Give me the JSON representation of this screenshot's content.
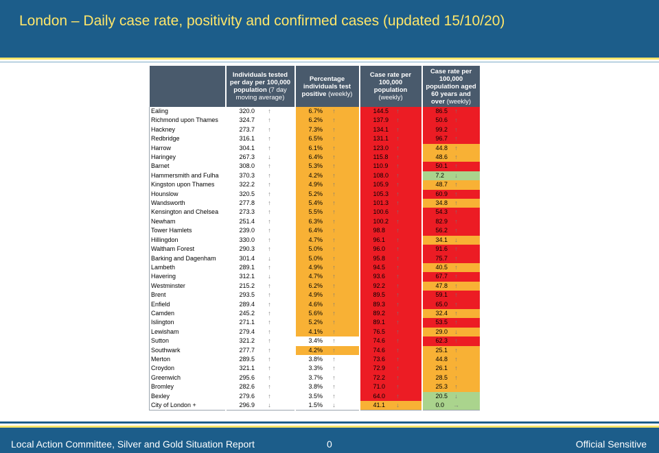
{
  "slide": {
    "title": "London – Daily case rate, positivity and confirmed cases (updated 15/10/20)",
    "footer_left": "Local Action Committee, Silver and Gold Situation Report",
    "footer_page": "0",
    "footer_right": "Official Sensitive"
  },
  "colors": {
    "header_blue": "#1c5d8a",
    "title_yellow": "#ffe66a",
    "red": "#ec1c24",
    "amber": "#f8b135",
    "green": "#aad48d",
    "table_header": "#495a6c"
  },
  "table": {
    "headers": {
      "tested": "Individuals tested per day per 100,000 population",
      "tested_note": "(7 day moving average)",
      "positivity": "Percentage individuals test positive",
      "positivity_note": "(weekly)",
      "case_rate": "Case rate per 100,000 population",
      "case_rate_note": "(weekly)",
      "case_rate_60": "Case rate per 100,000 population aged 60 years and over",
      "case_rate_60_note": "(weekly)"
    },
    "rows": [
      {
        "name": "Ealing",
        "tested": "320.0",
        "t_arr": "up",
        "pos": "6.7%",
        "p_arr": "up",
        "p_col": "amb",
        "rate": "144.5",
        "r_arr": "up",
        "r_col": "red",
        "r60": "86.5",
        "r60_arr": "up",
        "r60_col": "red"
      },
      {
        "name": "Richmond upon Thames",
        "tested": "324.7",
        "t_arr": "up",
        "pos": "6.2%",
        "p_arr": "up",
        "p_col": "amb",
        "rate": "137.9",
        "r_arr": "up",
        "r_col": "red",
        "r60": "50.6",
        "r60_arr": "up",
        "r60_col": "red"
      },
      {
        "name": "Hackney",
        "tested": "273.7",
        "t_arr": "up",
        "pos": "7.3%",
        "p_arr": "up",
        "p_col": "amb",
        "rate": "134.1",
        "r_arr": "up",
        "r_col": "red",
        "r60": "99.2",
        "r60_arr": "up",
        "r60_col": "red"
      },
      {
        "name": "Redbridge",
        "tested": "316.1",
        "t_arr": "up",
        "pos": "6.5%",
        "p_arr": "up",
        "p_col": "amb",
        "rate": "131.1",
        "r_arr": "up",
        "r_col": "red",
        "r60": "96.7",
        "r60_arr": "up",
        "r60_col": "red"
      },
      {
        "name": "Harrow",
        "tested": "304.1",
        "t_arr": "up",
        "pos": "6.1%",
        "p_arr": "up",
        "p_col": "amb",
        "rate": "123.0",
        "r_arr": "up",
        "r_col": "red",
        "r60": "44.8",
        "r60_arr": "up",
        "r60_col": "amb"
      },
      {
        "name": "Haringey",
        "tested": "267.3",
        "t_arr": "down",
        "pos": "6.4%",
        "p_arr": "up",
        "p_col": "amb",
        "rate": "115.8",
        "r_arr": "up",
        "r_col": "red",
        "r60": "48.6",
        "r60_arr": "up",
        "r60_col": "amb"
      },
      {
        "name": "Barnet",
        "tested": "308.0",
        "t_arr": "up",
        "pos": "5.3%",
        "p_arr": "up",
        "p_col": "amb",
        "rate": "110.9",
        "r_arr": "up",
        "r_col": "red",
        "r60": "50.1",
        "r60_arr": "up",
        "r60_col": "red"
      },
      {
        "name": "Hammersmith and Fulha",
        "tested": "370.3",
        "t_arr": "up",
        "pos": "4.2%",
        "p_arr": "up",
        "p_col": "amb",
        "rate": "108.0",
        "r_arr": "up",
        "r_col": "red",
        "r60": "7.2",
        "r60_arr": "down",
        "r60_col": "grn"
      },
      {
        "name": "Kingston upon Thames",
        "tested": "322.2",
        "t_arr": "up",
        "pos": "4.9%",
        "p_arr": "up",
        "p_col": "amb",
        "rate": "105.9",
        "r_arr": "up",
        "r_col": "red",
        "r60": "48.7",
        "r60_arr": "up",
        "r60_col": "amb"
      },
      {
        "name": "Hounslow",
        "tested": "320.5",
        "t_arr": "up",
        "pos": "5.2%",
        "p_arr": "up",
        "p_col": "amb",
        "rate": "105.3",
        "r_arr": "up",
        "r_col": "red",
        "r60": "60.9",
        "r60_arr": "up",
        "r60_col": "red"
      },
      {
        "name": "Wandsworth",
        "tested": "277.8",
        "t_arr": "up",
        "pos": "5.4%",
        "p_arr": "up",
        "p_col": "amb",
        "rate": "101.3",
        "r_arr": "up",
        "r_col": "red",
        "r60": "34.8",
        "r60_arr": "up",
        "r60_col": "amb"
      },
      {
        "name": "Kensington and Chelsea",
        "tested": "273.3",
        "t_arr": "up",
        "pos": "5.5%",
        "p_arr": "up",
        "p_col": "amb",
        "rate": "100.6",
        "r_arr": "up",
        "r_col": "red",
        "r60": "54.3",
        "r60_arr": "up",
        "r60_col": "red"
      },
      {
        "name": "Newham",
        "tested": "251.4",
        "t_arr": "up",
        "pos": "6.3%",
        "p_arr": "up",
        "p_col": "amb",
        "rate": "100.2",
        "r_arr": "up",
        "r_col": "red",
        "r60": "82.9",
        "r60_arr": "up",
        "r60_col": "red"
      },
      {
        "name": "Tower Hamlets",
        "tested": "239.0",
        "t_arr": "up",
        "pos": "6.4%",
        "p_arr": "up",
        "p_col": "amb",
        "rate": "98.8",
        "r_arr": "up",
        "r_col": "red",
        "r60": "56.2",
        "r60_arr": "up",
        "r60_col": "red"
      },
      {
        "name": "Hillingdon",
        "tested": "330.0",
        "t_arr": "up",
        "pos": "4.7%",
        "p_arr": "up",
        "p_col": "amb",
        "rate": "96.1",
        "r_arr": "up",
        "r_col": "red",
        "r60": "34.1",
        "r60_arr": "down",
        "r60_col": "amb"
      },
      {
        "name": "Waltham Forest",
        "tested": "290.3",
        "t_arr": "up",
        "pos": "5.0%",
        "p_arr": "up",
        "p_col": "amb",
        "rate": "96.0",
        "r_arr": "up",
        "r_col": "red",
        "r60": "91.6",
        "r60_arr": "up",
        "r60_col": "red"
      },
      {
        "name": "Barking and Dagenham",
        "tested": "301.4",
        "t_arr": "down",
        "pos": "5.0%",
        "p_arr": "up",
        "p_col": "amb",
        "rate": "95.8",
        "r_arr": "up",
        "r_col": "red",
        "r60": "75.7",
        "r60_arr": "up",
        "r60_col": "red"
      },
      {
        "name": "Lambeth",
        "tested": "289.1",
        "t_arr": "up",
        "pos": "4.9%",
        "p_arr": "up",
        "p_col": "amb",
        "rate": "94.5",
        "r_arr": "up",
        "r_col": "red",
        "r60": "40.5",
        "r60_arr": "up",
        "r60_col": "amb"
      },
      {
        "name": "Havering",
        "tested": "312.1",
        "t_arr": "down",
        "pos": "4.7%",
        "p_arr": "up",
        "p_col": "amb",
        "rate": "93.6",
        "r_arr": "up",
        "r_col": "red",
        "r60": "67.7",
        "r60_arr": "up",
        "r60_col": "red"
      },
      {
        "name": "Westminster",
        "tested": "215.2",
        "t_arr": "up",
        "pos": "6.2%",
        "p_arr": "up",
        "p_col": "amb",
        "rate": "92.2",
        "r_arr": "up",
        "r_col": "red",
        "r60": "47.8",
        "r60_arr": "up",
        "r60_col": "amb"
      },
      {
        "name": "Brent",
        "tested": "293.5",
        "t_arr": "up",
        "pos": "4.9%",
        "p_arr": "up",
        "p_col": "amb",
        "rate": "89.5",
        "r_arr": "up",
        "r_col": "red",
        "r60": "59.1",
        "r60_arr": "up",
        "r60_col": "red"
      },
      {
        "name": "Enfield",
        "tested": "289.4",
        "t_arr": "up",
        "pos": "4.6%",
        "p_arr": "up",
        "p_col": "amb",
        "rate": "89.3",
        "r_arr": "up",
        "r_col": "red",
        "r60": "65.0",
        "r60_arr": "up",
        "r60_col": "red"
      },
      {
        "name": "Camden",
        "tested": "245.2",
        "t_arr": "up",
        "pos": "5.6%",
        "p_arr": "up",
        "p_col": "amb",
        "rate": "89.2",
        "r_arr": "up",
        "r_col": "red",
        "r60": "32.4",
        "r60_arr": "up",
        "r60_col": "amb"
      },
      {
        "name": "Islington",
        "tested": "271.1",
        "t_arr": "up",
        "pos": "5.2%",
        "p_arr": "up",
        "p_col": "amb",
        "rate": "89.1",
        "r_arr": "up",
        "r_col": "red",
        "r60": "53.5",
        "r60_arr": "up",
        "r60_col": "red"
      },
      {
        "name": "Lewisham",
        "tested": "279.4",
        "t_arr": "up",
        "pos": "4.1%",
        "p_arr": "up",
        "p_col": "amb",
        "rate": "76.5",
        "r_arr": "up",
        "r_col": "red",
        "r60": "29.0",
        "r60_arr": "down",
        "r60_col": "amb"
      },
      {
        "name": "Sutton",
        "tested": "321.2",
        "t_arr": "up",
        "pos": "3.4%",
        "p_arr": "up",
        "p_col": "wht",
        "rate": "74.6",
        "r_arr": "up",
        "r_col": "red",
        "r60": "62.3",
        "r60_arr": "up",
        "r60_col": "red"
      },
      {
        "name": "Southwark",
        "tested": "277.7",
        "t_arr": "up",
        "pos": "4.2%",
        "p_arr": "up",
        "p_col": "amb",
        "rate": "74.6",
        "r_arr": "up",
        "r_col": "red",
        "r60": "25.1",
        "r60_arr": "up",
        "r60_col": "amb"
      },
      {
        "name": "Merton",
        "tested": "289.5",
        "t_arr": "up",
        "pos": "3.8%",
        "p_arr": "up",
        "p_col": "wht",
        "rate": "73.6",
        "r_arr": "up",
        "r_col": "red",
        "r60": "44.8",
        "r60_arr": "up",
        "r60_col": "amb"
      },
      {
        "name": "Croydon",
        "tested": "321.1",
        "t_arr": "up",
        "pos": "3.3%",
        "p_arr": "up",
        "p_col": "wht",
        "rate": "72.9",
        "r_arr": "up",
        "r_col": "red",
        "r60": "26.1",
        "r60_arr": "up",
        "r60_col": "amb"
      },
      {
        "name": "Greenwich",
        "tested": "295.6",
        "t_arr": "up",
        "pos": "3.7%",
        "p_arr": "up",
        "p_col": "wht",
        "rate": "72.2",
        "r_arr": "up",
        "r_col": "red",
        "r60": "28.5",
        "r60_arr": "up",
        "r60_col": "amb"
      },
      {
        "name": "Bromley",
        "tested": "282.6",
        "t_arr": "up",
        "pos": "3.8%",
        "p_arr": "up",
        "p_col": "wht",
        "rate": "71.0",
        "r_arr": "up",
        "r_col": "red",
        "r60": "25.3",
        "r60_arr": "up",
        "r60_col": "amb"
      },
      {
        "name": "Bexley",
        "tested": "279.6",
        "t_arr": "up",
        "pos": "3.5%",
        "p_arr": "up",
        "p_col": "wht",
        "rate": "64.0",
        "r_arr": "up",
        "r_col": "red",
        "r60": "20.5",
        "r60_arr": "down",
        "r60_col": "grn"
      },
      {
        "name": "City of London +",
        "tested": "296.9",
        "t_arr": "down",
        "pos": "1.5%",
        "p_arr": "down",
        "p_col": "wht",
        "rate": "41.1",
        "r_arr": "down",
        "r_col": "amb",
        "r60": "0.0",
        "r60_arr": "right",
        "r60_col": "grn"
      }
    ]
  }
}
